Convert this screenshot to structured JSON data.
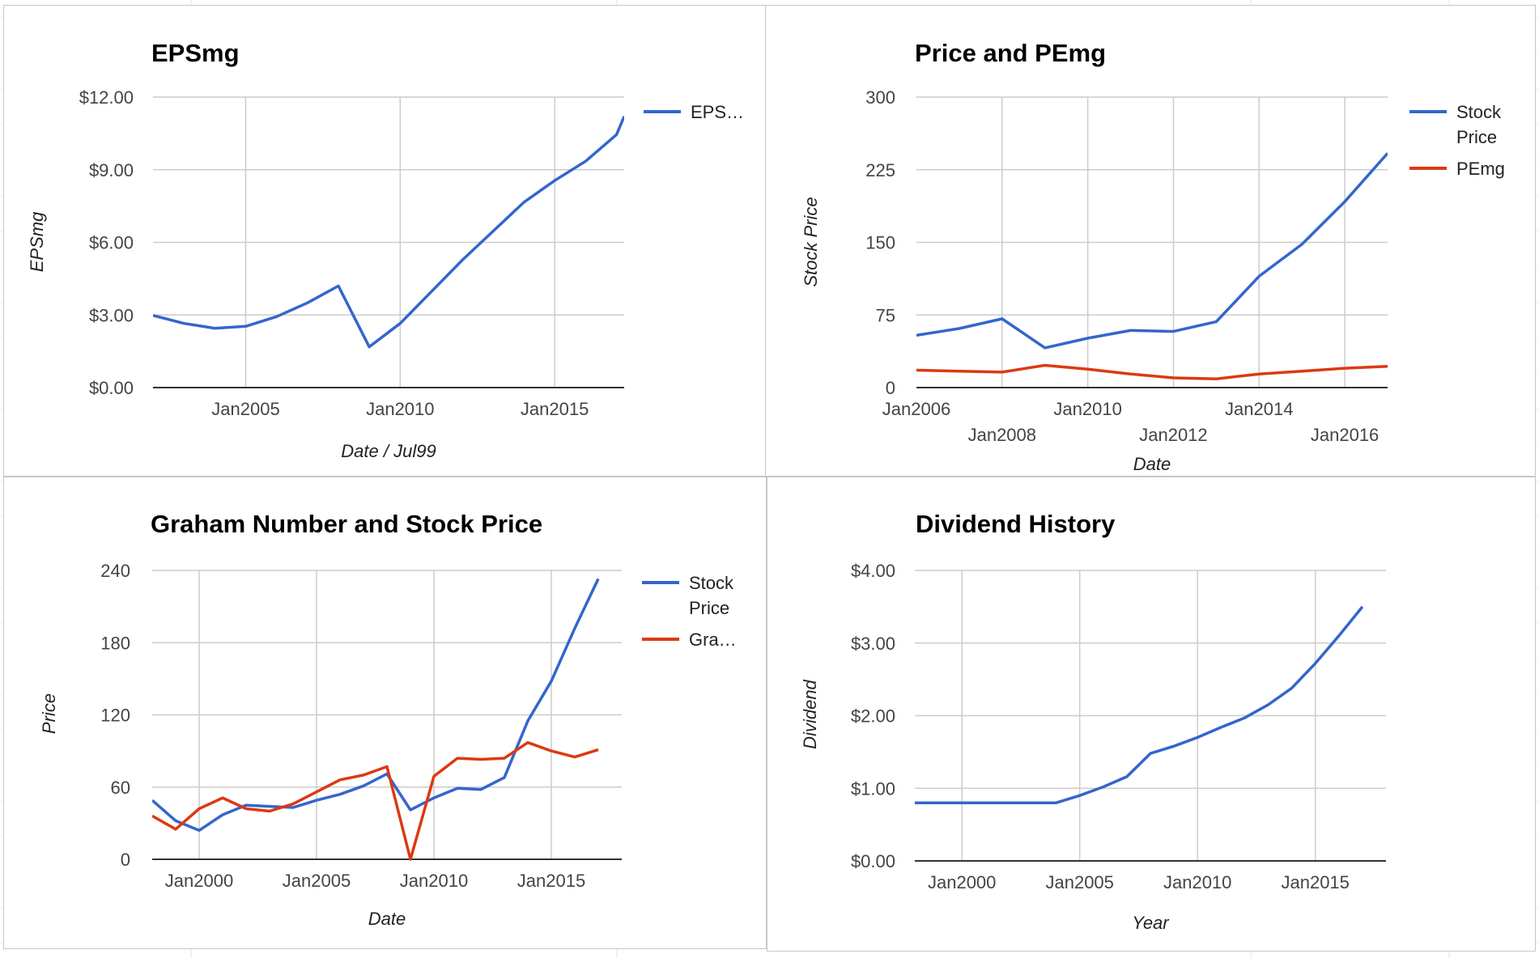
{
  "colors": {
    "blue": "#3366cc",
    "red": "#dc3912"
  },
  "charts": [
    {
      "type": "line",
      "title": "EPSmg",
      "xlabel": "Date / Jul99",
      "ylabel": "EPSmg",
      "yticks": [
        "$0.00",
        "$3.00",
        "$6.00",
        "$9.00",
        "$12.00"
      ],
      "ylim": [
        0,
        12
      ],
      "xlim": [
        2002.0,
        2017.25
      ],
      "xticks": [
        {
          "label": "Jan2005",
          "value": 2005,
          "row": 0
        },
        {
          "label": "Jan2010",
          "value": 2010,
          "row": 0
        },
        {
          "label": "Jan2015",
          "value": 2015,
          "row": 0
        }
      ],
      "legend_position": "right",
      "series": [
        {
          "name": "EPS…",
          "legend_lines": [
            "EPS…"
          ],
          "color": "blue",
          "x": [
            2002.0,
            2003.0,
            2004.0,
            2005.0,
            2006.0,
            2007.0,
            2008.0,
            2009.0,
            2010.0,
            2011.0,
            2012.0,
            2013.0,
            2014.0,
            2015.0,
            2016.0,
            2017.0,
            2017.25
          ],
          "y": [
            2.98,
            2.65,
            2.45,
            2.53,
            2.93,
            3.5,
            4.2,
            1.68,
            2.65,
            3.95,
            5.25,
            6.45,
            7.65,
            8.55,
            9.35,
            10.45,
            11.2
          ]
        }
      ]
    },
    {
      "type": "line",
      "title": "Price and PEmg",
      "xlabel": "Date",
      "ylabel": "Stock Price",
      "yticks": [
        "0",
        "75",
        "150",
        "225",
        "300"
      ],
      "ylim": [
        0,
        300
      ],
      "xlim": [
        2006.0,
        2017.0
      ],
      "xticks": [
        {
          "label": "Jan2006",
          "value": 2006,
          "row": 0
        },
        {
          "label": "Jan2008",
          "value": 2008,
          "row": 1
        },
        {
          "label": "Jan2010",
          "value": 2010,
          "row": 0
        },
        {
          "label": "Jan2012",
          "value": 2012,
          "row": 1
        },
        {
          "label": "Jan2014",
          "value": 2014,
          "row": 0
        },
        {
          "label": "Jan2016",
          "value": 2016,
          "row": 1
        }
      ],
      "legend_position": "right",
      "series": [
        {
          "name": "Stock Price",
          "legend_lines": [
            "Stock",
            "Price"
          ],
          "color": "blue",
          "x": [
            2006.0,
            2007.0,
            2008.0,
            2009.0,
            2010.0,
            2011.0,
            2012.0,
            2013.0,
            2014.0,
            2015.0,
            2016.0,
            2017.0
          ],
          "y": [
            54,
            61,
            71,
            41,
            51,
            59,
            58,
            68,
            115,
            148,
            192,
            242
          ]
        },
        {
          "name": "PEmg",
          "legend_lines": [
            "PEmg"
          ],
          "color": "red",
          "x": [
            2006.0,
            2007.0,
            2008.0,
            2009.0,
            2010.0,
            2011.0,
            2012.0,
            2013.0,
            2014.0,
            2015.0,
            2016.0,
            2017.0
          ],
          "y": [
            18,
            17,
            16,
            23,
            19,
            14,
            10,
            9,
            14,
            17,
            20,
            22
          ]
        }
      ]
    },
    {
      "type": "line",
      "title": "Graham Number and Stock Price",
      "xlabel": "Date",
      "ylabel": "Price",
      "yticks": [
        "0",
        "60",
        "120",
        "180",
        "240"
      ],
      "ylim": [
        0,
        240
      ],
      "xlim": [
        1998.0,
        2018.0
      ],
      "xticks": [
        {
          "label": "Jan2000",
          "value": 2000,
          "row": 0
        },
        {
          "label": "Jan2005",
          "value": 2005,
          "row": 0
        },
        {
          "label": "Jan2010",
          "value": 2010,
          "row": 0
        },
        {
          "label": "Jan2015",
          "value": 2015,
          "row": 0
        }
      ],
      "legend_position": "right",
      "series": [
        {
          "name": "Stock Price",
          "legend_lines": [
            "Stock",
            "Price"
          ],
          "color": "blue",
          "x": [
            1998.0,
            1999.0,
            2000.0,
            2001.0,
            2002.0,
            2003.0,
            2004.0,
            2005.0,
            2006.0,
            2007.0,
            2008.0,
            2009.0,
            2010.0,
            2011.0,
            2012.0,
            2013.0,
            2014.0,
            2015.0,
            2016.0,
            2017.0
          ],
          "y": [
            49,
            32,
            24,
            37,
            45,
            44,
            43,
            49,
            54,
            61,
            71,
            41,
            51,
            59,
            58,
            68,
            115,
            148,
            192,
            233
          ]
        },
        {
          "name": "Gra…",
          "legend_lines": [
            "Gra…"
          ],
          "color": "red",
          "x": [
            1998.0,
            1999.0,
            2000.0,
            2001.0,
            2002.0,
            2003.0,
            2004.0,
            2005.0,
            2006.0,
            2007.0,
            2008.0,
            2009.0,
            2010.0,
            2011.0,
            2012.0,
            2013.0,
            2014.0,
            2015.0,
            2016.0,
            2017.0
          ],
          "y": [
            36,
            25,
            42,
            51,
            42,
            40,
            46,
            56,
            66,
            70,
            77,
            0,
            69,
            84,
            83,
            84,
            97,
            90,
            85,
            91
          ]
        }
      ]
    },
    {
      "type": "line",
      "title": "Dividend History",
      "xlabel": "Year",
      "ylabel": "Dividend",
      "yticks": [
        "$0.00",
        "$1.00",
        "$2.00",
        "$3.00",
        "$4.00"
      ],
      "ylim": [
        0,
        4
      ],
      "xlim": [
        1998.0,
        2018.0
      ],
      "xticks": [
        {
          "label": "Jan2000",
          "value": 2000,
          "row": 0
        },
        {
          "label": "Jan2005",
          "value": 2005,
          "row": 0
        },
        {
          "label": "Jan2010",
          "value": 2010,
          "row": 0
        },
        {
          "label": "Jan2015",
          "value": 2015,
          "row": 0
        }
      ],
      "legend_position": "none",
      "series": [
        {
          "name": "",
          "legend_lines": [],
          "color": "blue",
          "x": [
            1998.0,
            1999.0,
            2000.0,
            2001.0,
            2002.0,
            2003.0,
            2004.0,
            2005.0,
            2006.0,
            2007.0,
            2008.0,
            2009.0,
            2010.0,
            2011.0,
            2012.0,
            2013.0,
            2014.0,
            2015.0,
            2016.0,
            2017.0
          ],
          "y": [
            0.8,
            0.8,
            0.8,
            0.8,
            0.8,
            0.8,
            0.8,
            0.9,
            1.02,
            1.16,
            1.48,
            1.58,
            1.7,
            1.84,
            1.97,
            2.15,
            2.38,
            2.72,
            3.1,
            3.5
          ]
        }
      ]
    }
  ]
}
